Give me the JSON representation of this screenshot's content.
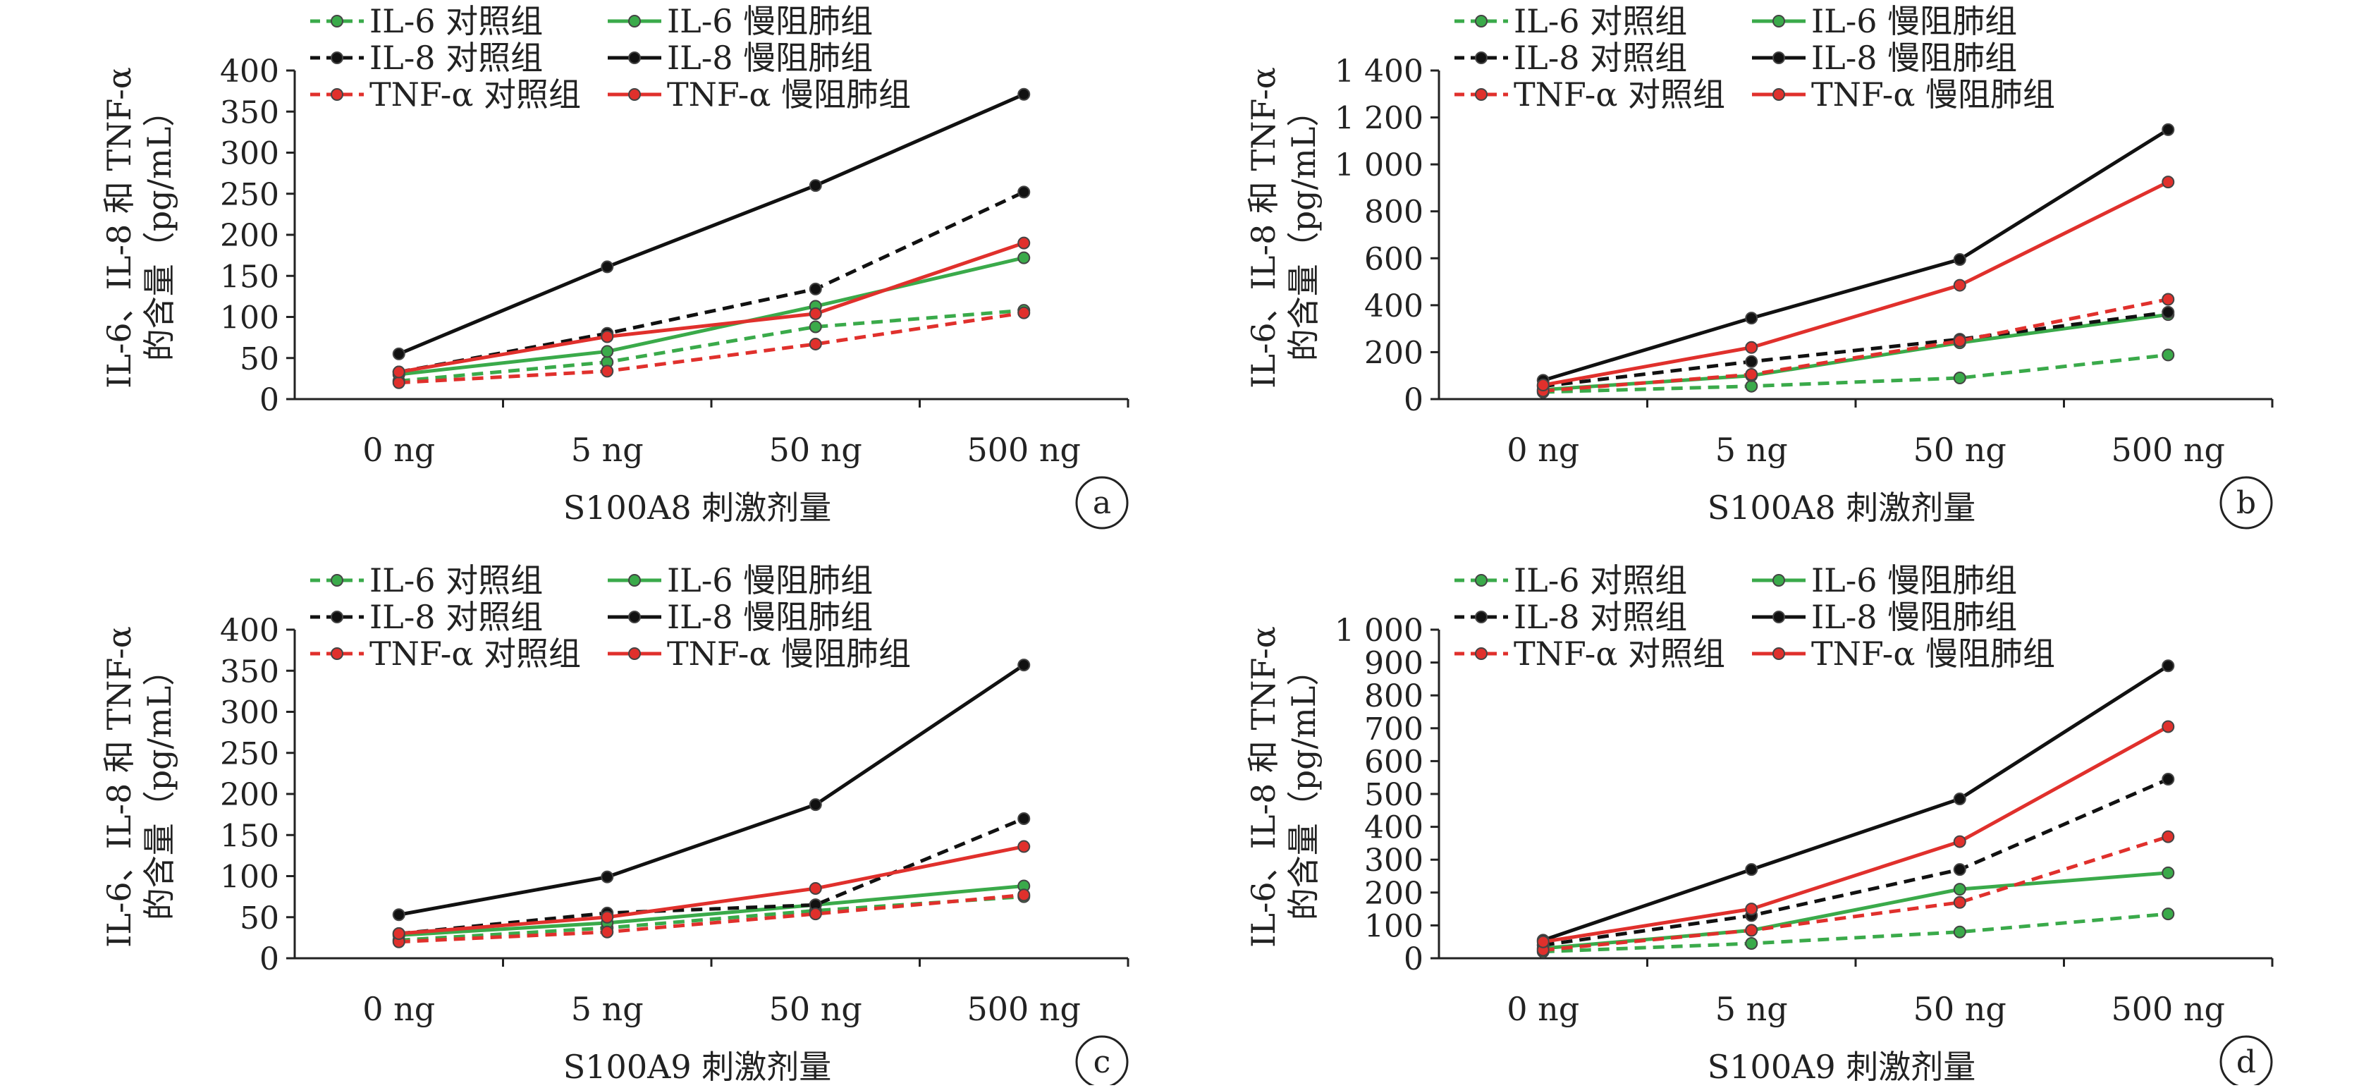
{
  "legend_labels": [
    "IL-6 对照组",
    "IL-6 慢阻肺组",
    "IL-8 对照组",
    "IL-8 慢阻肺组",
    "TNF-α 对照组",
    "TNF-α 慢阻肺组"
  ],
  "colors": {
    "il6": "#3aaa4a",
    "il8": "#111111",
    "tnf": "#e0302c"
  },
  "chart_data": [
    {
      "type": "line",
      "panel": "a",
      "ylabel_line1": "IL-6、IL-8 和 TNF-α",
      "ylabel_line2": "的含量（pg/mL）",
      "xlabel": "S100A8 刺激剂量",
      "categories": [
        "0 ng",
        "5 ng",
        "50 ng",
        "500 ng"
      ],
      "ylim": [
        0,
        400
      ],
      "yticks": [
        0,
        50,
        100,
        150,
        200,
        250,
        300,
        350,
        400
      ],
      "ytick_labels": [
        "0",
        "50",
        "100",
        "150",
        "200",
        "250",
        "300",
        "350",
        "400"
      ],
      "legend_position": "top-left",
      "series": [
        {
          "name": "IL-6 对照组",
          "color": "#3aaa4a",
          "style": "dashed",
          "values": [
            22,
            45,
            88,
            108
          ]
        },
        {
          "name": "IL-6 慢阻肺组",
          "color": "#3aaa4a",
          "style": "solid",
          "values": [
            30,
            58,
            113,
            172
          ]
        },
        {
          "name": "IL-8 对照组",
          "color": "#111111",
          "style": "dashed",
          "values": [
            33,
            80,
            134,
            252
          ]
        },
        {
          "name": "IL-8 慢阻肺组",
          "color": "#111111",
          "style": "solid",
          "values": [
            55,
            161,
            260,
            371
          ]
        },
        {
          "name": "TNF-α 对照组",
          "color": "#e0302c",
          "style": "dashed",
          "values": [
            20,
            34,
            67,
            105
          ]
        },
        {
          "name": "TNF-α 慢阻肺组",
          "color": "#e0302c",
          "style": "solid",
          "values": [
            33,
            76,
            104,
            190
          ]
        }
      ]
    },
    {
      "type": "line",
      "panel": "b",
      "ylabel_line1": "IL-6、IL-8 和 TNF-α",
      "ylabel_line2": "的含量（pg/mL）",
      "xlabel": "S100A8 刺激剂量",
      "categories": [
        "0 ng",
        "5 ng",
        "50 ng",
        "500 ng"
      ],
      "ylim": [
        0,
        1400
      ],
      "yticks": [
        0,
        200,
        400,
        600,
        800,
        1000,
        1200,
        1400
      ],
      "ytick_labels": [
        "0",
        "200",
        "400",
        "600",
        "800",
        "1 000",
        "1 200",
        "1 400"
      ],
      "legend_position": "top-left",
      "series": [
        {
          "name": "IL-6 对照组",
          "color": "#3aaa4a",
          "style": "dashed",
          "values": [
            30,
            55,
            90,
            188
          ]
        },
        {
          "name": "IL-6 慢阻肺组",
          "color": "#3aaa4a",
          "style": "solid",
          "values": [
            40,
            100,
            240,
            360
          ]
        },
        {
          "name": "IL-8 对照组",
          "color": "#111111",
          "style": "dashed",
          "values": [
            55,
            160,
            255,
            370
          ]
        },
        {
          "name": "IL-8 慢阻肺组",
          "color": "#111111",
          "style": "solid",
          "values": [
            80,
            345,
            595,
            1148
          ]
        },
        {
          "name": "TNF-α 对照组",
          "color": "#e0302c",
          "style": "dashed",
          "values": [
            35,
            105,
            248,
            425
          ]
        },
        {
          "name": "TNF-α 慢阻肺组",
          "color": "#e0302c",
          "style": "solid",
          "values": [
            60,
            220,
            485,
            925
          ]
        }
      ]
    },
    {
      "type": "line",
      "panel": "c",
      "ylabel_line1": "IL-6、IL-8 和 TNF-α",
      "ylabel_line2": "的含量（pg/mL）",
      "xlabel": "S100A9 刺激剂量",
      "categories": [
        "0 ng",
        "5 ng",
        "50 ng",
        "500 ng"
      ],
      "ylim": [
        0,
        400
      ],
      "yticks": [
        0,
        50,
        100,
        150,
        200,
        250,
        300,
        350,
        400
      ],
      "ytick_labels": [
        "0",
        "50",
        "100",
        "150",
        "200",
        "250",
        "300",
        "350",
        "400"
      ],
      "legend_position": "top-left",
      "series": [
        {
          "name": "IL-6 对照组",
          "color": "#3aaa4a",
          "style": "dashed",
          "values": [
            22,
            37,
            58,
            75
          ]
        },
        {
          "name": "IL-6 慢阻肺组",
          "color": "#3aaa4a",
          "style": "solid",
          "values": [
            28,
            43,
            65,
            88
          ]
        },
        {
          "name": "IL-8 对照组",
          "color": "#111111",
          "style": "dashed",
          "values": [
            30,
            55,
            65,
            170
          ]
        },
        {
          "name": "IL-8 慢阻肺组",
          "color": "#111111",
          "style": "solid",
          "values": [
            53,
            99,
            187,
            357
          ]
        },
        {
          "name": "TNF-α 对照组",
          "color": "#e0302c",
          "style": "dashed",
          "values": [
            20,
            32,
            54,
            77
          ]
        },
        {
          "name": "TNF-α 慢阻肺组",
          "color": "#e0302c",
          "style": "solid",
          "values": [
            30,
            50,
            85,
            136
          ]
        }
      ]
    },
    {
      "type": "line",
      "panel": "d",
      "ylabel_line1": "IL-6、IL-8 和 TNF-α",
      "ylabel_line2": "的含量（pg/mL）",
      "xlabel": "S100A9 刺激剂量",
      "categories": [
        "0 ng",
        "5 ng",
        "50 ng",
        "500 ng"
      ],
      "ylim": [
        0,
        1000
      ],
      "yticks": [
        0,
        100,
        200,
        300,
        400,
        500,
        600,
        700,
        800,
        900,
        1000
      ],
      "ytick_labels": [
        "0",
        "100",
        "200",
        "300",
        "400",
        "500",
        "600",
        "700",
        "800",
        "900",
        "1 000"
      ],
      "legend_position": "top-left",
      "series": [
        {
          "name": "IL-6 对照组",
          "color": "#3aaa4a",
          "style": "dashed",
          "values": [
            20,
            45,
            80,
            135
          ]
        },
        {
          "name": "IL-6 慢阻肺组",
          "color": "#3aaa4a",
          "style": "solid",
          "values": [
            30,
            85,
            210,
            260
          ]
        },
        {
          "name": "IL-8 对照组",
          "color": "#111111",
          "style": "dashed",
          "values": [
            40,
            130,
            270,
            545
          ]
        },
        {
          "name": "IL-8 慢阻肺组",
          "color": "#111111",
          "style": "solid",
          "values": [
            55,
            270,
            485,
            890
          ]
        },
        {
          "name": "TNF-α 对照组",
          "color": "#e0302c",
          "style": "dashed",
          "values": [
            25,
            85,
            170,
            370
          ]
        },
        {
          "name": "TNF-α 慢阻肺组",
          "color": "#e0302c",
          "style": "solid",
          "values": [
            50,
            150,
            355,
            705
          ]
        }
      ]
    }
  ]
}
